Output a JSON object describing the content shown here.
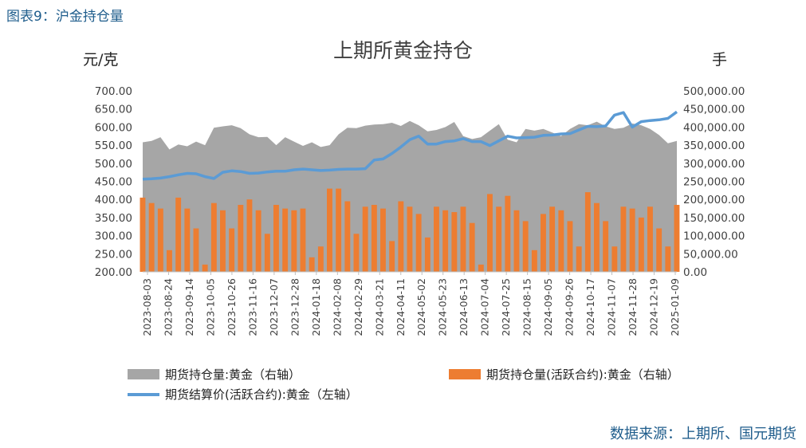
{
  "figure_caption": "图表9：沪金持仓量",
  "source": "数据来源：上期所、国元期货",
  "chart_data": {
    "type": "bar+area+line",
    "title": "上期所黄金持仓",
    "ylabel_left": "元/克",
    "ylabel_right": "手",
    "ylim_left": [
      200,
      700
    ],
    "ylim_right": [
      0,
      500000
    ],
    "left_ticks": [
      "700.00",
      "650.00",
      "600.00",
      "550.00",
      "500.00",
      "450.00",
      "400.00",
      "350.00",
      "300.00",
      "250.00",
      "200.00"
    ],
    "right_ticks": [
      "500,000.00",
      "450,000.00",
      "400,000.00",
      "350,000.00",
      "300,000.00",
      "250,000.00",
      "200,000.00",
      "150,000.00",
      "100,000.00",
      "50,000.00",
      "0.00"
    ],
    "x_tick_labels": [
      "2023-08-03",
      "2023-08-24",
      "2023-09-14",
      "2023-10-05",
      "2023-10-26",
      "2023-11-16",
      "2023-12-07",
      "2023-12-28",
      "2024-01-18",
      "2024-02-08",
      "2024-02-29",
      "2024-03-21",
      "2024-04-11",
      "2024-05-02",
      "2024-05-23",
      "2024-06-13",
      "2024-07-04",
      "2024-07-25",
      "2024-08-15",
      "2024-09-05",
      "2024-09-26",
      "2024-10-17",
      "2024-11-07",
      "2024-11-28",
      "2024-12-19",
      "2025-01-09"
    ],
    "series": [
      {
        "name": "期货持仓量:黄金（右轴）",
        "kind": "area",
        "axis": "right",
        "color": "#a6a6a6",
        "values": [
          358000,
          362000,
          372000,
          338000,
          352000,
          347000,
          360000,
          350000,
          398000,
          402000,
          405000,
          397000,
          380000,
          372000,
          373000,
          350000,
          372000,
          360000,
          348000,
          358000,
          345000,
          350000,
          380000,
          398000,
          397000,
          404000,
          407000,
          408000,
          412000,
          403000,
          417000,
          405000,
          388000,
          392000,
          400000,
          414000,
          375000,
          367000,
          372000,
          390000,
          408000,
          365000,
          358000,
          395000,
          390000,
          395000,
          385000,
          375000,
          395000,
          408000,
          405000,
          415000,
          402000,
          395000,
          398000,
          410000,
          405000,
          395000,
          378000,
          355000,
          362000
        ]
      },
      {
        "name": "期货持仓量(活跃合约):黄金（右轴）",
        "kind": "bar",
        "axis": "right",
        "color": "#ed7d31",
        "values": [
          205000,
          190000,
          175000,
          60000,
          205000,
          175000,
          120000,
          20000,
          190000,
          170000,
          120000,
          185000,
          200000,
          170000,
          105000,
          185000,
          175000,
          170000,
          175000,
          40000,
          70000,
          230000,
          230000,
          195000,
          105000,
          180000,
          185000,
          175000,
          85000,
          195000,
          180000,
          160000,
          95000,
          180000,
          170000,
          165000,
          180000,
          135000,
          20000,
          215000,
          180000,
          210000,
          170000,
          140000,
          60000,
          160000,
          180000,
          170000,
          140000,
          70000,
          220000,
          190000,
          140000,
          70000,
          180000,
          175000,
          150000,
          180000,
          120000,
          70000,
          185000
        ]
      },
      {
        "name": "期货结算价(活跃合约):黄金（左轴）",
        "kind": "line",
        "axis": "left",
        "color": "#5b9bd5",
        "values": [
          456,
          457,
          459,
          463,
          468,
          472,
          471,
          463,
          458,
          475,
          479,
          477,
          472,
          473,
          476,
          478,
          478,
          482,
          484,
          482,
          480,
          481,
          483,
          484,
          484,
          485,
          509,
          512,
          527,
          545,
          565,
          575,
          553,
          553,
          560,
          562,
          568,
          560,
          560,
          549,
          562,
          575,
          570,
          571,
          572,
          577,
          578,
          581,
          582,
          592,
          602,
          601,
          603,
          633,
          640,
          600,
          615,
          618,
          620,
          624,
          642
        ]
      }
    ],
    "legend": [
      {
        "label": "期货持仓量:黄金（右轴）",
        "kind": "area",
        "color": "#a6a6a6"
      },
      {
        "label": "期货持仓量(活跃合约):黄金（右轴）",
        "kind": "bar",
        "color": "#ed7d31"
      },
      {
        "label": "期货结算价(活跃合约):黄金（左轴）",
        "kind": "line",
        "color": "#5b9bd5"
      }
    ]
  }
}
